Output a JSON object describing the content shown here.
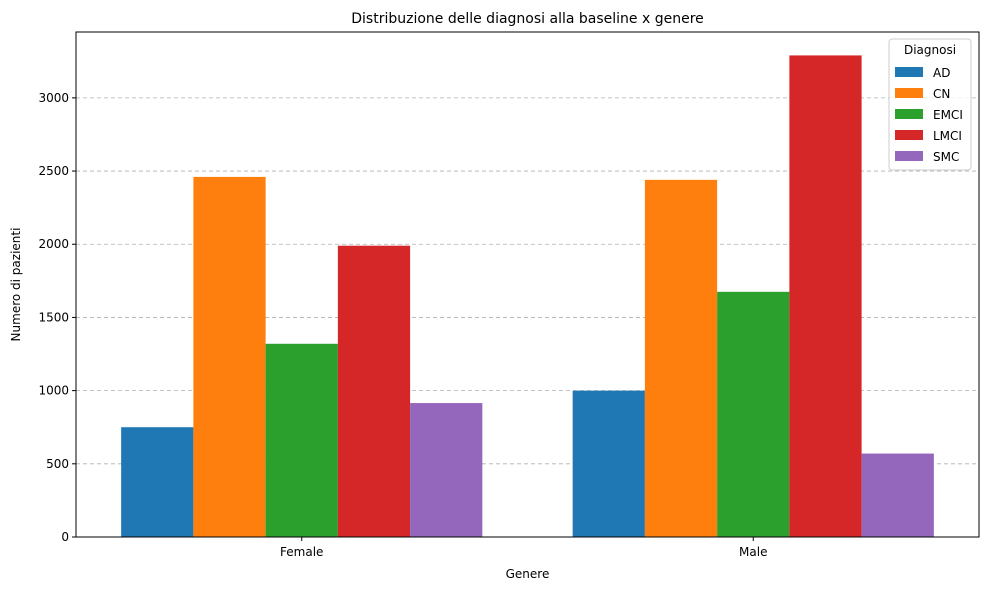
{
  "chart_data": {
    "type": "bar",
    "title": "Distribuzione delle diagnosi alla baseline x genere",
    "xlabel": "Genere",
    "ylabel": "Numero di pazienti",
    "categories": [
      "Female",
      "Male"
    ],
    "series": [
      {
        "name": "AD",
        "color": "#1f77b4",
        "values": [
          750,
          1000
        ]
      },
      {
        "name": "CN",
        "color": "#ff7f0e",
        "values": [
          2460,
          2440
        ]
      },
      {
        "name": "EMCI",
        "color": "#2ca02c",
        "values": [
          1320,
          1675
        ]
      },
      {
        "name": "LMCI",
        "color": "#d62728",
        "values": [
          1990,
          3290
        ]
      },
      {
        "name": "SMC",
        "color": "#9467bd",
        "values": [
          915,
          570
        ]
      }
    ],
    "ylim": [
      0,
      3450
    ],
    "yticks": [
      0,
      500,
      1000,
      1500,
      2000,
      2500,
      3000
    ],
    "grid": "y dashed",
    "legend": {
      "title": "Diagnosi",
      "placement": "top-right"
    }
  }
}
